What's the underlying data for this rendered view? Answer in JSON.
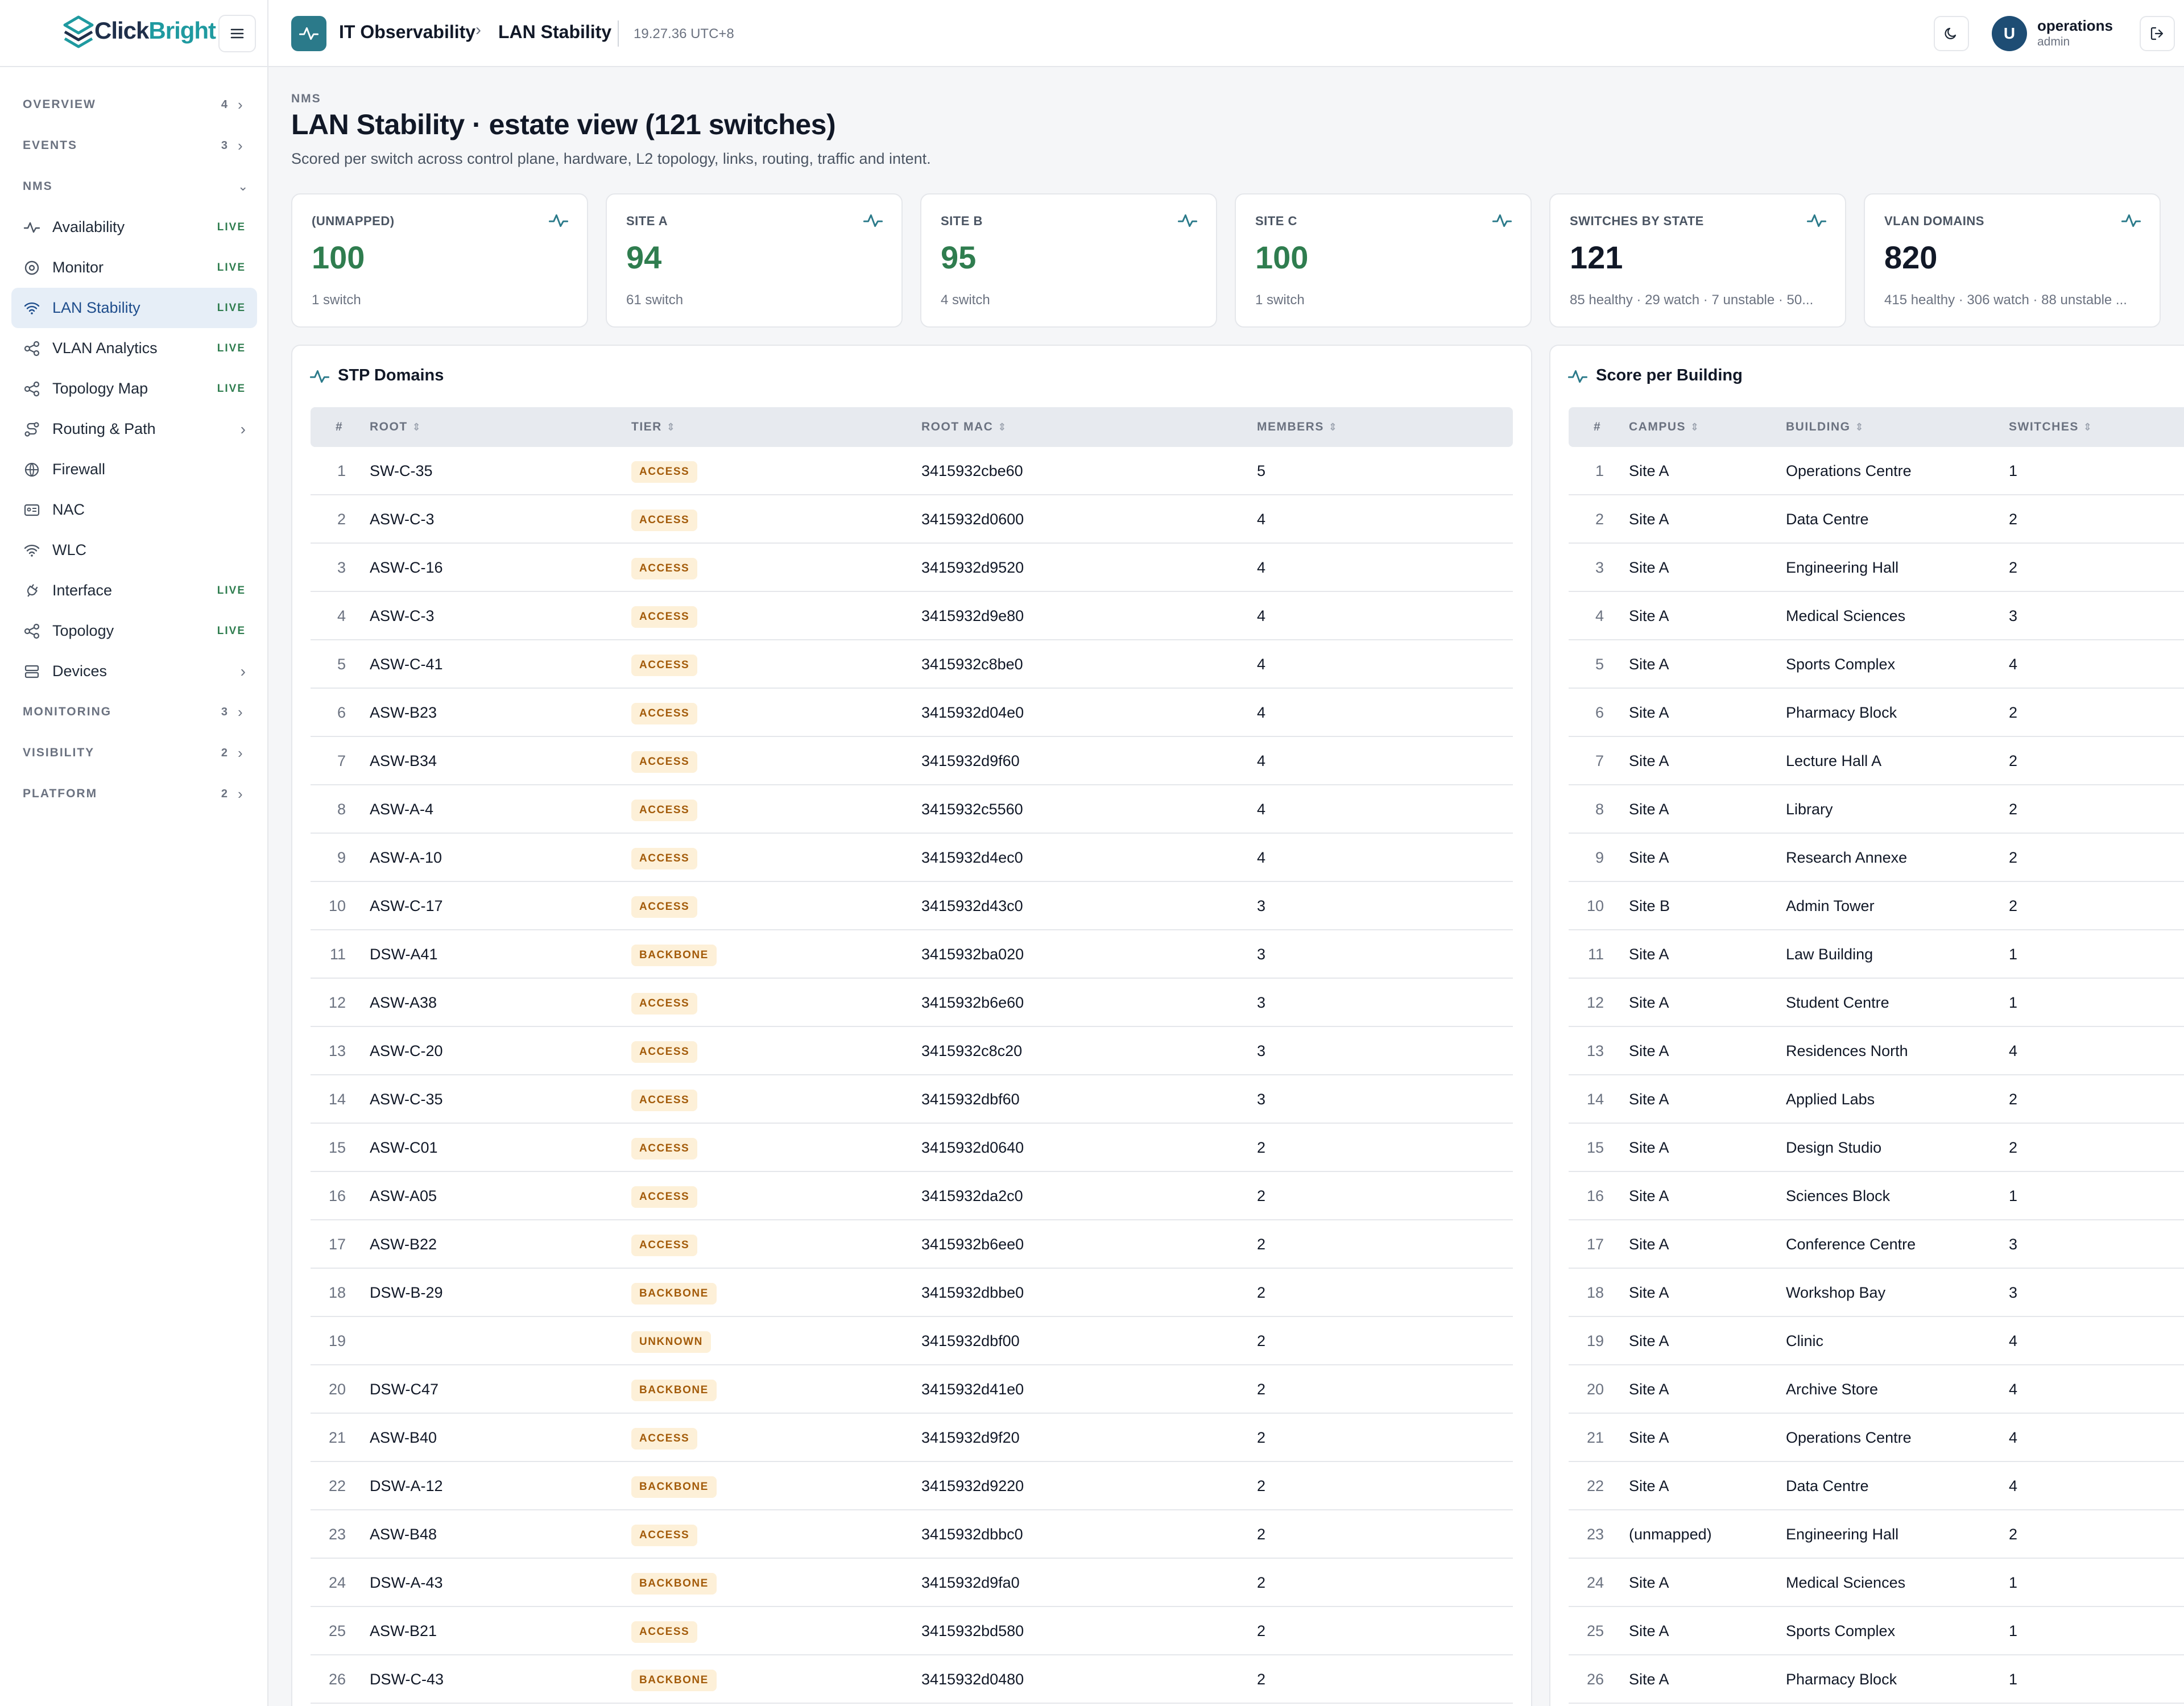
{
  "brand": {
    "name_part1": "Click",
    "name_part2": "Bright"
  },
  "nav": {
    "sections_top": [
      {
        "label": "OVERVIEW",
        "count": "4"
      },
      {
        "label": "EVENTS",
        "count": "3"
      }
    ],
    "nms_label": "NMS",
    "items": [
      {
        "label": "Availability",
        "tag": "LIVE",
        "icon": "pulse-icon"
      },
      {
        "label": "Monitor",
        "tag": "LIVE",
        "icon": "target-icon"
      },
      {
        "label": "LAN Stability",
        "tag": "LIVE",
        "icon": "wifi-icon"
      },
      {
        "label": "VLAN Analytics",
        "tag": "LIVE",
        "icon": "share-icon"
      },
      {
        "label": "Topology Map",
        "tag": "LIVE",
        "icon": "share-icon"
      },
      {
        "label": "Routing & Path",
        "tag": "",
        "icon": "route-icon"
      },
      {
        "label": "Firewall",
        "tag": "",
        "icon": "globe-icon"
      },
      {
        "label": "NAC",
        "tag": "",
        "icon": "id-card-icon"
      },
      {
        "label": "WLC",
        "tag": "",
        "icon": "wifi-icon"
      },
      {
        "label": "Interface",
        "tag": "LIVE",
        "icon": "plug-icon"
      },
      {
        "label": "Topology",
        "tag": "LIVE",
        "icon": "share-icon"
      },
      {
        "label": "Devices",
        "tag": "",
        "icon": "server-icon"
      }
    ],
    "sections_bottom": [
      {
        "label": "MONITORING",
        "count": "3"
      },
      {
        "label": "VISIBILITY",
        "count": "2"
      },
      {
        "label": "PLATFORM",
        "count": "2"
      }
    ]
  },
  "topbar": {
    "crumb1": "IT Observability",
    "crumb_sep": "›",
    "crumb2": "LAN Stability",
    "clock": "19.27.36 UTC+8",
    "user_name": "operations",
    "user_role": "admin",
    "avatar_initial": "U"
  },
  "header": {
    "eyebrow": "NMS",
    "title": "LAN Stability · estate view (121 switches)",
    "subtitle": "Scored per switch across control plane, hardware, L2 topology, links, routing, traffic and intent."
  },
  "kpis": [
    {
      "label": "(UNMAPPED)",
      "value": "100",
      "sub": "1 switch"
    },
    {
      "label": "SITE A",
      "value": "94",
      "sub": "61 switch"
    },
    {
      "label": "SITE B",
      "value": "95",
      "sub": "4 switch"
    },
    {
      "label": "SITE C",
      "value": "100",
      "sub": "1 switch"
    },
    {
      "label": "SWITCHES BY STATE",
      "value": "121",
      "sub": "85 healthy · 29 watch · 7 unstable · 50..."
    },
    {
      "label": "VLAN DOMAINS",
      "value": "820",
      "sub": "415 healthy · 306 watch · 88 unstable ..."
    }
  ],
  "stp": {
    "title": "STP Domains",
    "columns": [
      "#",
      "ROOT",
      "TIER",
      "ROOT MAC",
      "MEMBERS"
    ],
    "rows": [
      [
        "1",
        "SW-C-35",
        "ACCESS",
        "3415932cbe60",
        "5"
      ],
      [
        "2",
        "ASW-C-3",
        "ACCESS",
        "3415932d0600",
        "4"
      ],
      [
        "3",
        "ASW-C-16",
        "ACCESS",
        "3415932d9520",
        "4"
      ],
      [
        "4",
        "ASW-C-3",
        "ACCESS",
        "3415932d9e80",
        "4"
      ],
      [
        "5",
        "ASW-C-41",
        "ACCESS",
        "3415932c8be0",
        "4"
      ],
      [
        "6",
        "ASW-B23",
        "ACCESS",
        "3415932d04e0",
        "4"
      ],
      [
        "7",
        "ASW-B34",
        "ACCESS",
        "3415932d9f60",
        "4"
      ],
      [
        "8",
        "ASW-A-4",
        "ACCESS",
        "3415932c5560",
        "4"
      ],
      [
        "9",
        "ASW-A-10",
        "ACCESS",
        "3415932d4ec0",
        "4"
      ],
      [
        "10",
        "ASW-C-17",
        "ACCESS",
        "3415932d43c0",
        "3"
      ],
      [
        "11",
        "DSW-A41",
        "BACKBONE",
        "3415932ba020",
        "3"
      ],
      [
        "12",
        "ASW-A38",
        "ACCESS",
        "3415932b6e60",
        "3"
      ],
      [
        "13",
        "ASW-C-20",
        "ACCESS",
        "3415932c8c20",
        "3"
      ],
      [
        "14",
        "ASW-C-35",
        "ACCESS",
        "3415932dbf60",
        "3"
      ],
      [
        "15",
        "ASW-C01",
        "ACCESS",
        "3415932d0640",
        "2"
      ],
      [
        "16",
        "ASW-A05",
        "ACCESS",
        "3415932da2c0",
        "2"
      ],
      [
        "17",
        "ASW-B22",
        "ACCESS",
        "3415932b6ee0",
        "2"
      ],
      [
        "18",
        "DSW-B-29",
        "BACKBONE",
        "3415932dbbe0",
        "2"
      ],
      [
        "19",
        "",
        "UNKNOWN",
        "3415932dbf00",
        "2"
      ],
      [
        "20",
        "DSW-C47",
        "BACKBONE",
        "3415932d41e0",
        "2"
      ],
      [
        "21",
        "ASW-B40",
        "ACCESS",
        "3415932d9f20",
        "2"
      ],
      [
        "22",
        "DSW-A-12",
        "BACKBONE",
        "3415932d9220",
        "2"
      ],
      [
        "23",
        "ASW-B48",
        "ACCESS",
        "3415932dbbc0",
        "2"
      ],
      [
        "24",
        "DSW-A-43",
        "BACKBONE",
        "3415932d9fa0",
        "2"
      ],
      [
        "25",
        "ASW-B21",
        "ACCESS",
        "3415932bd580",
        "2"
      ],
      [
        "26",
        "DSW-C-43",
        "BACKBONE",
        "3415932d0480",
        "2"
      ]
    ]
  },
  "buildings": {
    "title": "Score per Building",
    "columns": [
      "#",
      "CAMPUS",
      "BUILDING",
      "SWITCHES"
    ],
    "rows": [
      [
        "1",
        "Site A",
        "Operations Centre",
        "1"
      ],
      [
        "2",
        "Site A",
        "Data Centre",
        "2"
      ],
      [
        "3",
        "Site A",
        "Engineering Hall",
        "2"
      ],
      [
        "4",
        "Site A",
        "Medical Sciences",
        "3"
      ],
      [
        "5",
        "Site A",
        "Sports Complex",
        "4"
      ],
      [
        "6",
        "Site A",
        "Pharmacy Block",
        "2"
      ],
      [
        "7",
        "Site A",
        "Lecture Hall A",
        "2"
      ],
      [
        "8",
        "Site A",
        "Library",
        "2"
      ],
      [
        "9",
        "Site A",
        "Research Annexe",
        "2"
      ],
      [
        "10",
        "Site B",
        "Admin Tower",
        "2"
      ],
      [
        "11",
        "Site A",
        "Law Building",
        "1"
      ],
      [
        "12",
        "Site A",
        "Student Centre",
        "1"
      ],
      [
        "13",
        "Site A",
        "Residences North",
        "4"
      ],
      [
        "14",
        "Site A",
        "Applied Labs",
        "2"
      ],
      [
        "15",
        "Site A",
        "Design Studio",
        "2"
      ],
      [
        "16",
        "Site A",
        "Sciences Block",
        "1"
      ],
      [
        "17",
        "Site A",
        "Conference Centre",
        "3"
      ],
      [
        "18",
        "Site A",
        "Workshop Bay",
        "3"
      ],
      [
        "19",
        "Site A",
        "Clinic",
        "4"
      ],
      [
        "20",
        "Site A",
        "Archive Store",
        "4"
      ],
      [
        "21",
        "Site A",
        "Operations Centre",
        "4"
      ],
      [
        "22",
        "Site A",
        "Data Centre",
        "4"
      ],
      [
        "23",
        "(unmapped)",
        "Engineering Hall",
        "2"
      ],
      [
        "24",
        "Site A",
        "Medical Sciences",
        "1"
      ],
      [
        "25",
        "Site A",
        "Sports Complex",
        "1"
      ],
      [
        "26",
        "Site A",
        "Pharmacy Block",
        "1"
      ]
    ]
  },
  "colors": {
    "accent": "#2b7a8a",
    "good": "#2f7d4f",
    "badge_bg": "#fdf0d8",
    "badge_fg": "#a35b0a"
  }
}
